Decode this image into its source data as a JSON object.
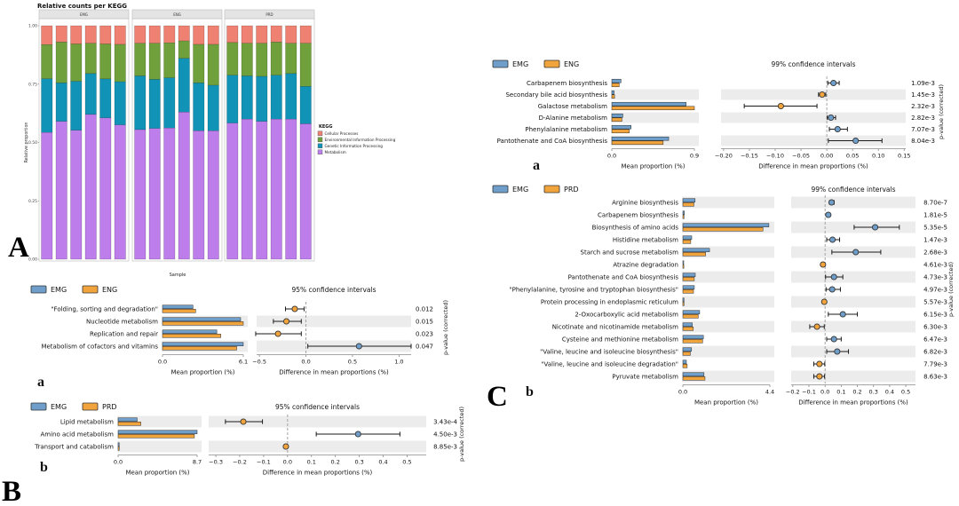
{
  "panels": {
    "A": "A",
    "B": "B",
    "C": "C"
  },
  "colors": {
    "group_blue": "#6e9ec9",
    "group_orange": "#f2a43c",
    "stripe": "#ececec",
    "zero_line": "#9a9a9a",
    "axis": "#888888",
    "bar_stroke": "#2b2b2b",
    "dot_stroke": "#333333",
    "text": "#111111"
  },
  "chart_data": [
    {
      "id": "kegg-stacked",
      "type": "bar",
      "subtype": "stacked-proportions",
      "title": "Relative counts per KEGG",
      "xlabel": "Sample",
      "ylabel": "Relative proportion",
      "ylim": [
        0.0,
        1.0
      ],
      "y_ticks": [
        "1.00",
        "0.75",
        "0.50",
        "0.25",
        "0.00"
      ],
      "legend_title": "KEGG",
      "legend_items": [
        {
          "label": "Cellular Processes",
          "color": "#ee8172"
        },
        {
          "label": "Environmental Information Processing",
          "color": "#6fa03c"
        },
        {
          "label": "Genetic Information Processing",
          "color": "#1193b7"
        },
        {
          "label": "Metabolism",
          "color": "#bd7dea"
        }
      ],
      "facets": [
        {
          "label": "EMG",
          "bars": [
            [
              0.081,
              0.146,
              0.23,
              0.543
            ],
            [
              0.07,
              0.175,
              0.165,
              0.59
            ],
            [
              0.078,
              0.16,
              0.21,
              0.552
            ],
            [
              0.075,
              0.13,
              0.175,
              0.62
            ],
            [
              0.078,
              0.15,
              0.167,
              0.605
            ],
            [
              0.08,
              0.16,
              0.185,
              0.575
            ]
          ]
        },
        {
          "label": "ENG",
          "bars": [
            [
              0.075,
              0.14,
              0.23,
              0.555
            ],
            [
              0.075,
              0.155,
              0.21,
              0.56
            ],
            [
              0.073,
              0.15,
              0.215,
              0.562
            ],
            [
              0.065,
              0.075,
              0.23,
              0.63
            ],
            [
              0.08,
              0.165,
              0.205,
              0.55
            ],
            [
              0.08,
              0.175,
              0.195,
              0.55
            ]
          ]
        },
        {
          "label": "PRD",
          "bars": [
            [
              0.072,
              0.14,
              0.205,
              0.583
            ],
            [
              0.075,
              0.14,
              0.185,
              0.6
            ],
            [
              0.075,
              0.142,
              0.193,
              0.59
            ],
            [
              0.07,
              0.142,
              0.188,
              0.6
            ],
            [
              0.075,
              0.13,
              0.195,
              0.6
            ],
            [
              0.075,
              0.185,
              0.16,
              0.58
            ]
          ]
        }
      ]
    },
    {
      "id": "stamp-b-a",
      "type": "bar",
      "subtype": "extended-error-bar",
      "panel_letter": "a",
      "groups": [
        {
          "name": "EMG",
          "color": "#6e9ec9"
        },
        {
          "name": "ENG",
          "color": "#f2a43c"
        }
      ],
      "ci_title": "95% confidence intervals",
      "xlabel_left": "Mean proportion (%)",
      "xlabel_right": "Difference in mean proportions (%)",
      "right_axis_label": "p-value (corrected)",
      "left_max": 6.1,
      "left_tick_labels": [
        "0.0",
        "6.1"
      ],
      "right_xlim": [
        -0.53,
        1.13
      ],
      "right_ticks": [
        -0.5,
        0.0,
        0.5,
        1.0
      ],
      "right_tick_labels": [
        "−0.5",
        "0.0",
        "0.5",
        "1.0"
      ],
      "rows": [
        {
          "category": "\"Folding, sorting and degradation\"",
          "means": [
            2.3,
            2.5
          ],
          "diff": -0.12,
          "ci": [
            -0.22,
            -0.02
          ],
          "enriched": "ENG",
          "p": "0.012"
        },
        {
          "category": "Nucleotide metabolism",
          "means": [
            5.9,
            6.1
          ],
          "diff": -0.21,
          "ci": [
            -0.35,
            -0.05
          ],
          "enriched": "ENG",
          "p": "0.015"
        },
        {
          "category": "Replication and repair",
          "means": [
            4.1,
            4.4
          ],
          "diff": -0.3,
          "ci": [
            -0.54,
            -0.05
          ],
          "enriched": "ENG",
          "p": "0.023"
        },
        {
          "category": "Metabolism of cofactors and vitamins",
          "means": [
            6.1,
            5.6
          ],
          "diff": 0.57,
          "ci": [
            0.02,
            1.13
          ],
          "enriched": "EMG",
          "p": "0.047"
        }
      ]
    },
    {
      "id": "stamp-b-b",
      "type": "bar",
      "subtype": "extended-error-bar",
      "panel_letter": "b",
      "groups": [
        {
          "name": "EMG",
          "color": "#6e9ec9"
        },
        {
          "name": "PRD",
          "color": "#f2a43c"
        }
      ],
      "ci_title": "95% confidence intervals",
      "xlabel_left": "Mean proportion (%)",
      "xlabel_right": "Difference in mean proportions (%)",
      "right_axis_label": "p-value (corrected)",
      "left_max": 8.7,
      "left_tick_labels": [
        "0.0",
        "8.7"
      ],
      "right_xlim": [
        -0.33,
        0.58
      ],
      "right_ticks": [
        -0.3,
        -0.2,
        -0.1,
        0.0,
        0.1,
        0.2,
        0.3,
        0.4,
        0.5
      ],
      "right_tick_labels": [
        "−0.3",
        "−0.2",
        "−0.1",
        "0.0",
        "0.1",
        "0.2",
        "0.3",
        "0.4",
        "0.5"
      ],
      "rows": [
        {
          "category": "Lipid metabolism",
          "means": [
            2.1,
            2.5
          ],
          "diff": -0.185,
          "ci": [
            -0.26,
            -0.105
          ],
          "enriched": "PRD",
          "p": "3.43e-4"
        },
        {
          "category": "Amino acid metabolism",
          "means": [
            8.7,
            8.4
          ],
          "diff": 0.295,
          "ci": [
            0.12,
            0.47
          ],
          "enriched": "EMG",
          "p": "4.50e-3"
        },
        {
          "category": "Transport and catabolism",
          "means": [
            0.12,
            0.13
          ],
          "diff": -0.007,
          "ci": [
            -0.013,
            -0.001
          ],
          "enriched": "PRD",
          "p": "8.85e-3"
        }
      ]
    },
    {
      "id": "stamp-c-a",
      "type": "bar",
      "subtype": "extended-error-bar",
      "panel_letter": "a",
      "groups": [
        {
          "name": "EMG",
          "color": "#6e9ec9"
        },
        {
          "name": "ENG",
          "color": "#f2a43c"
        }
      ],
      "ci_title": "99% confidence intervals",
      "xlabel_left": "Mean proportion (%)",
      "xlabel_right": "Difference in mean proportions (%)",
      "right_axis_label": "p-value (corrected)",
      "left_max": 0.9,
      "left_tick_labels": [
        "0.0",
        "0.9"
      ],
      "right_xlim": [
        -0.205,
        0.153
      ],
      "right_ticks": [
        -0.2,
        -0.15,
        -0.1,
        -0.05,
        0.0,
        0.05,
        0.1,
        0.15
      ],
      "right_tick_labels": [
        "−0.20",
        "−0.15",
        "−0.10",
        "−0.05",
        "0.00",
        "0.05",
        "0.10",
        "0.15"
      ],
      "rows": [
        {
          "category": "Carbapenem biosynthesis",
          "means": [
            0.1,
            0.08
          ],
          "diff": 0.013,
          "ci": [
            0.002,
            0.024
          ],
          "enriched": "EMG",
          "p": "1.09e-3"
        },
        {
          "category": "Secondary bile acid biosynthesis",
          "means": [
            0.025,
            0.03
          ],
          "diff": -0.009,
          "ci": [
            -0.016,
            -0.002
          ],
          "enriched": "ENG",
          "p": "1.45e-3"
        },
        {
          "category": "Galactose metabolism",
          "means": [
            0.81,
            0.9
          ],
          "diff": -0.089,
          "ci": [
            -0.16,
            -0.019
          ],
          "enriched": "ENG",
          "p": "2.32e-3"
        },
        {
          "category": "D-Alanine metabolism",
          "means": [
            0.12,
            0.11
          ],
          "diff": 0.008,
          "ci": [
            0.001,
            0.017
          ],
          "enriched": "EMG",
          "p": "2.82e-3"
        },
        {
          "category": "Phenylalanine metabolism",
          "means": [
            0.21,
            0.19
          ],
          "diff": 0.021,
          "ci": [
            0.005,
            0.04
          ],
          "enriched": "EMG",
          "p": "7.07e-3"
        },
        {
          "category": "Pantothenate and CoA biosynthesis",
          "means": [
            0.62,
            0.56
          ],
          "diff": 0.056,
          "ci": [
            0.003,
            0.107
          ],
          "enriched": "EMG",
          "p": "8.04e-3"
        }
      ]
    },
    {
      "id": "stamp-c-b",
      "type": "bar",
      "subtype": "extended-error-bar",
      "panel_letter": "b",
      "groups": [
        {
          "name": "EMG",
          "color": "#6e9ec9"
        },
        {
          "name": "PRD",
          "color": "#f2a43c"
        }
      ],
      "ci_title": "99% confidence intervals",
      "xlabel_left": "Mean proportion (%)",
      "xlabel_right": "Difference in mean proportions (%)",
      "right_axis_label": "p-value (corrected)",
      "left_max": 4.4,
      "left_tick_labels": [
        "0.0",
        "4.4"
      ],
      "right_xlim": [
        -0.21,
        0.56
      ],
      "right_ticks": [
        -0.2,
        -0.1,
        0.0,
        0.1,
        0.2,
        0.3,
        0.4,
        0.5
      ],
      "right_tick_labels": [
        "−0.2",
        "−0.1",
        "0.0",
        "0.1",
        "0.2",
        "0.3",
        "0.4",
        "0.5"
      ],
      "rows": [
        {
          "category": "Arginine biosynthesis",
          "means": [
            0.62,
            0.56
          ],
          "diff": 0.04,
          "ci": [
            0.028,
            0.056
          ],
          "enriched": "EMG",
          "p": "8.70e-7"
        },
        {
          "category": "Carbapenem biosynthesis",
          "means": [
            0.08,
            0.06
          ],
          "diff": 0.02,
          "ci": [
            0.013,
            0.027
          ],
          "enriched": "EMG",
          "p": "1.81e-5"
        },
        {
          "category": "Biosynthesis of amino acids",
          "means": [
            4.35,
            4.05
          ],
          "diff": 0.31,
          "ci": [
            0.18,
            0.46
          ],
          "enriched": "EMG",
          "p": "5.35e-5"
        },
        {
          "category": "Histidine metabolism",
          "means": [
            0.45,
            0.4
          ],
          "diff": 0.046,
          "ci": [
            0.01,
            0.09
          ],
          "enriched": "EMG",
          "p": "1.47e-3"
        },
        {
          "category": "Starch and sucrose metabolism",
          "means": [
            1.35,
            1.15
          ],
          "diff": 0.19,
          "ci": [
            0.042,
            0.345
          ],
          "enriched": "EMG",
          "p": "2.68e-3"
        },
        {
          "category": "Atrazine degradation",
          "means": [
            0.04,
            0.05
          ],
          "diff": -0.013,
          "ci": [
            -0.02,
            -0.005
          ],
          "enriched": "PRD",
          "p": "4.61e-3"
        },
        {
          "category": "Pantothenate and CoA biosynthesis",
          "means": [
            0.63,
            0.58
          ],
          "diff": 0.055,
          "ci": [
            0.003,
            0.11
          ],
          "enriched": "EMG",
          "p": "4.73e-3"
        },
        {
          "category": "\"Phenylalanine, tyrosine and tryptophan biosynthesis\"",
          "means": [
            0.58,
            0.54
          ],
          "diff": 0.044,
          "ci": [
            0.006,
            0.095
          ],
          "enriched": "EMG",
          "p": "4.97e-3"
        },
        {
          "category": "Protein processing in endoplasmic reticulum",
          "means": [
            0.06,
            0.06
          ],
          "diff": -0.005,
          "ci": [
            -0.012,
            0.002
          ],
          "enriched": "PRD",
          "p": "5.57e-3"
        },
        {
          "category": "2-Oxocarboxylic acid metabolism",
          "means": [
            0.85,
            0.78
          ],
          "diff": 0.11,
          "ci": [
            0.02,
            0.2
          ],
          "enriched": "EMG",
          "p": "6.15e-3"
        },
        {
          "category": "Nicotinate and nicotinamide metabolism",
          "means": [
            0.48,
            0.53
          ],
          "diff": -0.05,
          "ci": [
            -0.095,
            -0.005
          ],
          "enriched": "PRD",
          "p": "6.30e-3"
        },
        {
          "category": "Cysteine and methionine metabolism",
          "means": [
            1.04,
            1.0
          ],
          "diff": 0.055,
          "ci": [
            0.01,
            0.1
          ],
          "enriched": "EMG",
          "p": "6.47e-3"
        },
        {
          "category": "\"Valine, leucine and isoleucine biosynthesis\"",
          "means": [
            0.44,
            0.38
          ],
          "diff": 0.075,
          "ci": [
            0.01,
            0.145
          ],
          "enriched": "EMG",
          "p": "6.82e-3"
        },
        {
          "category": "\"Valine, leucine and isoleucine degradation\"",
          "means": [
            0.18,
            0.22
          ],
          "diff": -0.035,
          "ci": [
            -0.07,
            -0.002
          ],
          "enriched": "PRD",
          "p": "7.79e-3"
        },
        {
          "category": "Pyruvate metabolism",
          "means": [
            1.07,
            1.12
          ],
          "diff": -0.035,
          "ci": [
            -0.07,
            -0.003
          ],
          "enriched": "PRD",
          "p": "8.63e-3"
        }
      ]
    }
  ]
}
